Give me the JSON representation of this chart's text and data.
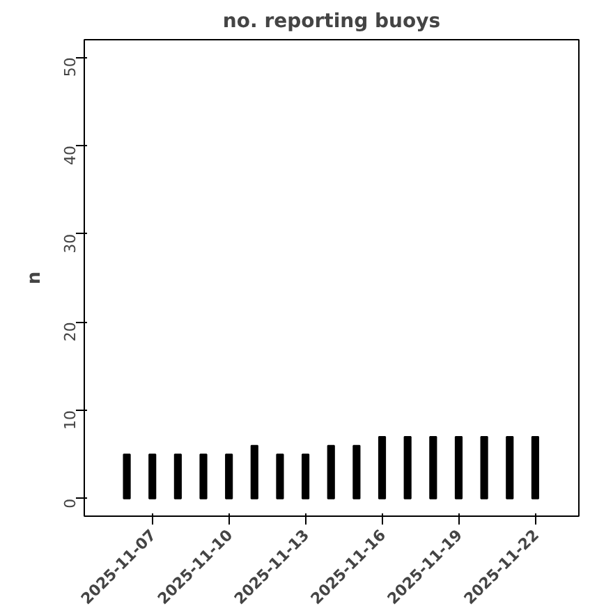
{
  "chart_data": {
    "type": "bar",
    "title": "no. reporting buoys",
    "ylabel": "n",
    "x": [
      "2025-11-06",
      "2025-11-07",
      "2025-11-08",
      "2025-11-09",
      "2025-11-10",
      "2025-11-11",
      "2025-11-12",
      "2025-11-13",
      "2025-11-14",
      "2025-11-15",
      "2025-11-16",
      "2025-11-17",
      "2025-11-18",
      "2025-11-19",
      "2025-11-20",
      "2025-11-21",
      "2025-11-22"
    ],
    "values": [
      5,
      5,
      5,
      5,
      5,
      6,
      5,
      5,
      6,
      6,
      7,
      7,
      7,
      7,
      7,
      7,
      7
    ],
    "color": "#000000",
    "xlim": [
      "2025-11-04T08:00",
      "2025-11-23T17:00"
    ],
    "xticks": [
      "2025-11-07",
      "2025-11-10",
      "2025-11-13",
      "2025-11-16",
      "2025-11-19",
      "2025-11-22"
    ],
    "ylim": [
      -2,
      52
    ],
    "yticks": [
      0,
      10,
      20,
      30,
      40,
      50
    ],
    "grid": false
  }
}
